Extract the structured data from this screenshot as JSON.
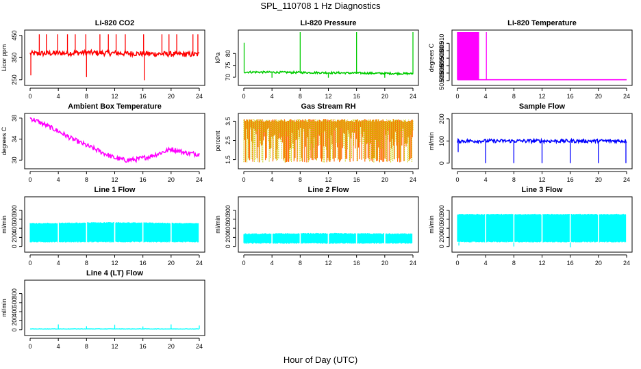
{
  "figure": {
    "title": "SPL_110708  1 Hz Diagnostics",
    "xlabel": "Hour of Day (UTC)"
  },
  "chart_data": [
    {
      "id": "co2",
      "type": "line",
      "title": "Li-820 CO2",
      "ylabel": "Licor ppm",
      "color": "#ff0000",
      "xlim": [
        0,
        24
      ],
      "ylim": [
        240,
        465
      ],
      "xticks": [
        "0",
        "4",
        "8",
        "12",
        "16",
        "20",
        "24"
      ],
      "yticks": [
        {
          "v": 250,
          "label": "250"
        },
        {
          "v": 350,
          "label": "350"
        },
        {
          "v": 450,
          "label": "450"
        }
      ],
      "base": [
        {
          "x": 0,
          "y": 368
        },
        {
          "x": 4,
          "y": 370
        },
        {
          "x": 8,
          "y": 372
        },
        {
          "x": 12,
          "y": 370
        },
        {
          "x": 16,
          "y": 368
        },
        {
          "x": 20,
          "y": 366
        },
        {
          "x": 24,
          "y": 364
        }
      ],
      "spikes": [
        {
          "x": 0.1,
          "y": 270
        },
        {
          "x": 1.3,
          "y": 455
        },
        {
          "x": 2.3,
          "y": 455
        },
        {
          "x": 3.9,
          "y": 455
        },
        {
          "x": 5.3,
          "y": 455
        },
        {
          "x": 6.4,
          "y": 455
        },
        {
          "x": 7.9,
          "y": 455
        },
        {
          "x": 8.0,
          "y": 262
        },
        {
          "x": 9.9,
          "y": 455
        },
        {
          "x": 11.1,
          "y": 455
        },
        {
          "x": 12.2,
          "y": 455
        },
        {
          "x": 13.5,
          "y": 455
        },
        {
          "x": 16.1,
          "y": 455
        },
        {
          "x": 16.2,
          "y": 248
        },
        {
          "x": 18.7,
          "y": 455
        },
        {
          "x": 19.7,
          "y": 455
        },
        {
          "x": 20.8,
          "y": 455
        },
        {
          "x": 23.1,
          "y": 455
        },
        {
          "x": 23.8,
          "y": 455
        }
      ],
      "noise": 12
    },
    {
      "id": "pressure",
      "type": "line",
      "title": "Li-820 Pressure",
      "ylabel": "kPa",
      "color": "#00cc00",
      "xlim": [
        0,
        24
      ],
      "ylim": [
        68,
        89
      ],
      "xticks": [
        "0",
        "4",
        "8",
        "12",
        "16",
        "20",
        "24"
      ],
      "yticks": [
        {
          "v": 70,
          "label": "70"
        },
        {
          "v": 75,
          "label": "75"
        },
        {
          "v": 80,
          "label": "80"
        }
      ],
      "base": [
        {
          "x": 0,
          "y": 72.2
        },
        {
          "x": 12,
          "y": 71.9
        },
        {
          "x": 24,
          "y": 71.5
        }
      ],
      "spikes": [
        {
          "x": 0.05,
          "y": 84.5
        },
        {
          "x": 4.0,
          "y": 69.8
        },
        {
          "x": 8.0,
          "y": 89.0
        },
        {
          "x": 12.0,
          "y": 69.8
        },
        {
          "x": 16.0,
          "y": 89.0
        },
        {
          "x": 20.0,
          "y": 69.8
        },
        {
          "x": 24.0,
          "y": 89.0
        }
      ],
      "noise": 0.4
    },
    {
      "id": "li820temp",
      "type": "line",
      "title": "Li-820 Temperature",
      "ylabel": "degrees C",
      "color": "#ff00ff",
      "xlim": [
        0,
        24
      ],
      "ylim": [
        50.884,
        50.9175
      ],
      "xticks": [
        "0",
        "4",
        "8",
        "12",
        "16",
        "20",
        "24"
      ],
      "yticks": [
        {
          "v": 50.885,
          "label": "50.885"
        },
        {
          "v": 50.89,
          "label": "50.890"
        },
        {
          "v": 50.895,
          "label": "50.895"
        },
        {
          "v": 50.9,
          "label": "50.900"
        },
        {
          "v": 50.905,
          "label": "50.905"
        },
        {
          "v": 50.91,
          "label": "50.910"
        }
      ],
      "low": 50.8855,
      "high": 50.9175,
      "burst_end": 3.0,
      "late_spike": 4.1
    },
    {
      "id": "ambient",
      "type": "line",
      "title": "Ambient Box Temperature",
      "ylabel": "degrees C",
      "color": "#ff00ff",
      "xlim": [
        0,
        24
      ],
      "ylim": [
        29,
        38.5
      ],
      "xticks": [
        "0",
        "4",
        "8",
        "12",
        "16",
        "20",
        "24"
      ],
      "yticks": [
        {
          "v": 30,
          "label": "30"
        },
        {
          "v": 34,
          "label": "34"
        },
        {
          "v": 38,
          "label": "38"
        }
      ],
      "base": [
        {
          "x": 0,
          "y": 38.0
        },
        {
          "x": 2,
          "y": 36.8
        },
        {
          "x": 4,
          "y": 35.5
        },
        {
          "x": 6,
          "y": 34.0
        },
        {
          "x": 8,
          "y": 32.8
        },
        {
          "x": 10,
          "y": 31.6
        },
        {
          "x": 12,
          "y": 30.4
        },
        {
          "x": 13.5,
          "y": 30.0
        },
        {
          "x": 15,
          "y": 30.1
        },
        {
          "x": 17,
          "y": 30.7
        },
        {
          "x": 19,
          "y": 31.6
        },
        {
          "x": 20,
          "y": 32.1
        },
        {
          "x": 21,
          "y": 31.8
        },
        {
          "x": 22,
          "y": 31.4
        },
        {
          "x": 24,
          "y": 31.1
        }
      ],
      "noise": 0.45
    },
    {
      "id": "rh",
      "type": "line",
      "title": "Gas Stream RH",
      "ylabel": "percent",
      "color": "#ff6600",
      "color2": "#cccc00",
      "xlim": [
        0,
        24
      ],
      "ylim": [
        1.2,
        3.8
      ],
      "xticks": [
        "0",
        "4",
        "8",
        "12",
        "16",
        "20",
        "24"
      ],
      "yticks": [
        {
          "v": 1.5,
          "label": "1.5"
        },
        {
          "v": 2.5,
          "label": "2.5"
        },
        {
          "v": 3.5,
          "label": "3.5"
        }
      ],
      "upper": 3.62,
      "lower": 1.35
    },
    {
      "id": "sampleflow",
      "type": "line",
      "title": "Sample Flow",
      "ylabel": "ml/min",
      "color": "#0000ff",
      "xlim": [
        0,
        24
      ],
      "ylim": [
        -10,
        215
      ],
      "xticks": [
        "0",
        "4",
        "8",
        "12",
        "16",
        "20",
        "24"
      ],
      "yticks": [
        {
          "v": 0,
          "label": "0"
        },
        {
          "v": 100,
          "label": "100"
        },
        {
          "v": 200,
          "label": "200"
        }
      ],
      "base": [
        {
          "x": 0,
          "y": 100
        },
        {
          "x": 24,
          "y": 100
        }
      ],
      "spikes": [
        {
          "x": 0.1,
          "y": 50
        },
        {
          "x": 4.0,
          "y": 0
        },
        {
          "x": 8.0,
          "y": 0
        },
        {
          "x": 12.0,
          "y": 0
        },
        {
          "x": 16.0,
          "y": 0
        },
        {
          "x": 20.0,
          "y": 0
        },
        {
          "x": 23.9,
          "y": 0
        }
      ],
      "noise": 8
    },
    {
      "id": "line1",
      "type": "area",
      "title": "Line 1 Flow",
      "ylabel": "ml/min",
      "color": "#00ffff",
      "xlim": [
        0,
        24
      ],
      "ylim": [
        -50,
        1050
      ],
      "xticks": [
        "0",
        "4",
        "8",
        "12",
        "16",
        "20",
        "24"
      ],
      "yticks": [
        {
          "v": 0,
          "label": "0"
        },
        {
          "v": 200,
          "label": "200"
        },
        {
          "v": 400,
          "label": "400"
        },
        {
          "v": 600,
          "label": "600"
        },
        {
          "v": 800,
          "label": "800"
        }
      ],
      "upper": [
        {
          "x": 0,
          "y": 520
        },
        {
          "x": 12,
          "y": 540
        },
        {
          "x": 24,
          "y": 520
        }
      ],
      "lower": [
        {
          "x": 0,
          "y": 90
        },
        {
          "x": 24,
          "y": 90
        }
      ],
      "gaps": [
        4,
        8,
        12,
        16,
        20,
        24
      ],
      "dips": []
    },
    {
      "id": "line2",
      "type": "area",
      "title": "Line 2 Flow",
      "ylabel": "ml/min",
      "color": "#00ffff",
      "xlim": [
        0,
        24
      ],
      "ylim": [
        -50,
        1050
      ],
      "xticks": [
        "0",
        "4",
        "8",
        "12",
        "16",
        "20",
        "24"
      ],
      "yticks": [
        {
          "v": 0,
          "label": "0"
        },
        {
          "v": 200,
          "label": "200"
        },
        {
          "v": 400,
          "label": "400"
        },
        {
          "v": 600,
          "label": "600"
        },
        {
          "v": 800,
          "label": "800"
        }
      ],
      "upper": [
        {
          "x": 0,
          "y": 290
        },
        {
          "x": 12,
          "y": 300
        },
        {
          "x": 24,
          "y": 290
        }
      ],
      "lower": [
        {
          "x": 0,
          "y": 60
        },
        {
          "x": 24,
          "y": 60
        }
      ],
      "gaps": [
        4,
        8,
        12,
        16,
        20,
        24
      ],
      "dips": []
    },
    {
      "id": "line3",
      "type": "area",
      "title": "Line 3 Flow",
      "ylabel": "ml/min",
      "color": "#00ffff",
      "xlim": [
        0,
        24
      ],
      "ylim": [
        -50,
        1050
      ],
      "xticks": [
        "0",
        "4",
        "8",
        "12",
        "16",
        "20",
        "24"
      ],
      "yticks": [
        {
          "v": 0,
          "label": "0"
        },
        {
          "v": 200,
          "label": "200"
        },
        {
          "v": 400,
          "label": "400"
        },
        {
          "v": 600,
          "label": "600"
        },
        {
          "v": 800,
          "label": "800"
        }
      ],
      "upper": [
        {
          "x": 0,
          "y": 720
        },
        {
          "x": 24,
          "y": 720
        }
      ],
      "lower": [
        {
          "x": 0,
          "y": 90
        },
        {
          "x": 24,
          "y": 90
        }
      ],
      "gaps": [
        4,
        8,
        12,
        16,
        20,
        24
      ],
      "dips": [
        {
          "x": 0.2,
          "y": 20
        },
        {
          "x": 8.0,
          "y": 0
        },
        {
          "x": 16.0,
          "y": -20
        }
      ]
    },
    {
      "id": "line4",
      "type": "line",
      "title": "Line 4 (LT) Flow",
      "ylabel": "ml/min",
      "color": "#00ffff",
      "xlim": [
        0,
        24
      ],
      "ylim": [
        -50,
        1050
      ],
      "xticks": [
        "0",
        "4",
        "8",
        "12",
        "16",
        "20",
        "24"
      ],
      "yticks": [
        {
          "v": 0,
          "label": "0"
        },
        {
          "v": 200,
          "label": "200"
        },
        {
          "v": 400,
          "label": "400"
        },
        {
          "v": 600,
          "label": "600"
        },
        {
          "v": 800,
          "label": "800"
        }
      ],
      "base": [
        {
          "x": 0,
          "y": 20
        },
        {
          "x": 24,
          "y": 20
        }
      ],
      "spikes": [
        {
          "x": 4.0,
          "y": 120
        },
        {
          "x": 8.0,
          "y": 80
        },
        {
          "x": 12.0,
          "y": 110
        },
        {
          "x": 16.0,
          "y": 75
        },
        {
          "x": 20.0,
          "y": 120
        },
        {
          "x": 24.0,
          "y": 95
        }
      ],
      "noise": 4
    }
  ]
}
